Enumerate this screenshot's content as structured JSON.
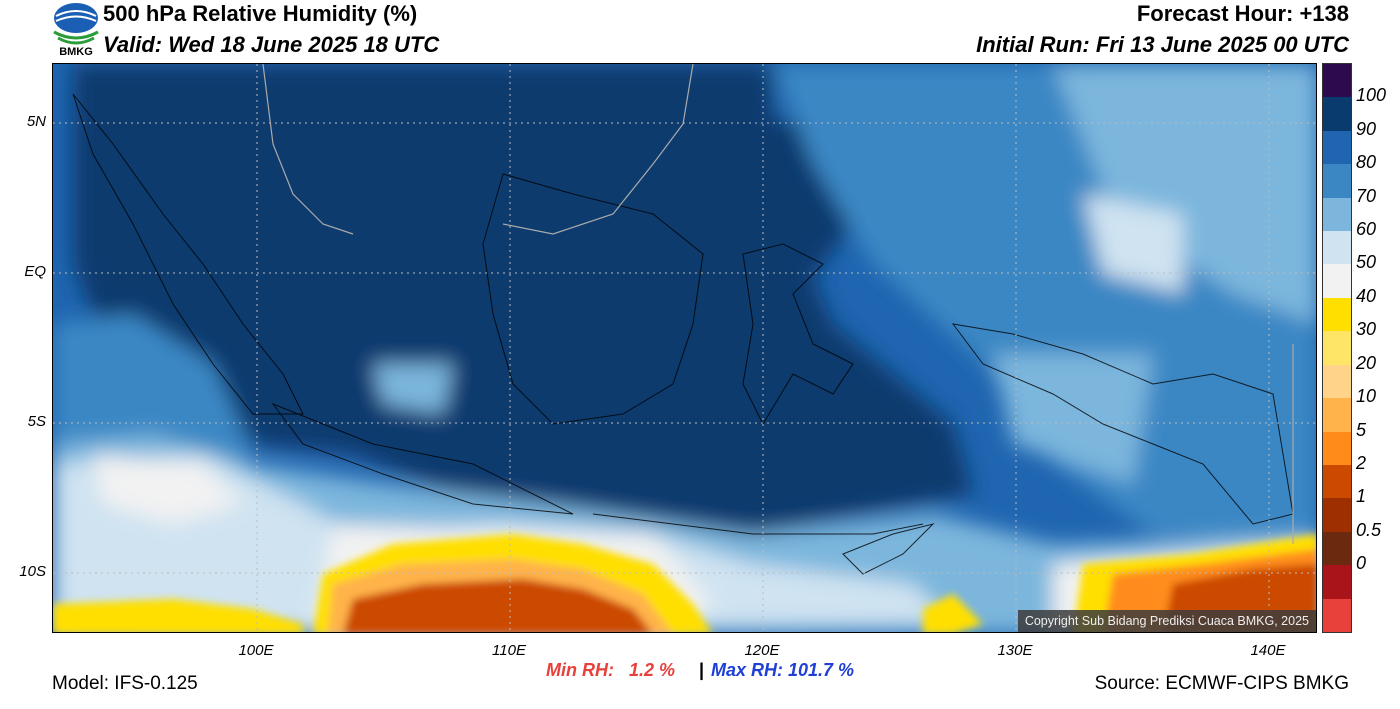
{
  "header": {
    "title": "500 hPa Relative Humidity (%)",
    "valid": "Valid: Wed 18 June 2025 18 UTC",
    "forecast_hour": "Forecast Hour: +138",
    "initial_run": "Initial Run: Fri 13 June 2025 00 UTC",
    "logo_text": "BMKG"
  },
  "map": {
    "lat_ticks": [
      "5N",
      "EQ",
      "5S",
      "10S"
    ],
    "lon_ticks": [
      "100E",
      "110E",
      "120E",
      "130E",
      "140E"
    ],
    "copyright": "Copyright Sub Bidang Prediksi Cuaca BMKG, 2025"
  },
  "colorbar": {
    "labels": [
      "100",
      "90",
      "80",
      "70",
      "60",
      "50",
      "40",
      "30",
      "20",
      "10",
      "5",
      "2",
      "1",
      "0.5",
      "0"
    ],
    "colors": [
      "#2d0a4e",
      "#0a3b6e",
      "#1f65b0",
      "#3a87c4",
      "#7cb6dd",
      "#cfe3f1",
      "#f2f2f2",
      "#ffdf00",
      "#ffe566",
      "#ffd38a",
      "#ffb34a",
      "#ff8c1a",
      "#cc4a00",
      "#9e2f00",
      "#6b2a10",
      "#a8141a",
      "#e8403a"
    ]
  },
  "footer": {
    "model": "Model: IFS-0.125",
    "min_rh": "Min RH:   1.2 %",
    "sep": "|",
    "max_rh": "Max RH: 101.7 %",
    "source": "Source: ECMWF-CIPS BMKG",
    "min_color": "#e8403a",
    "max_color": "#1f3fd6"
  }
}
